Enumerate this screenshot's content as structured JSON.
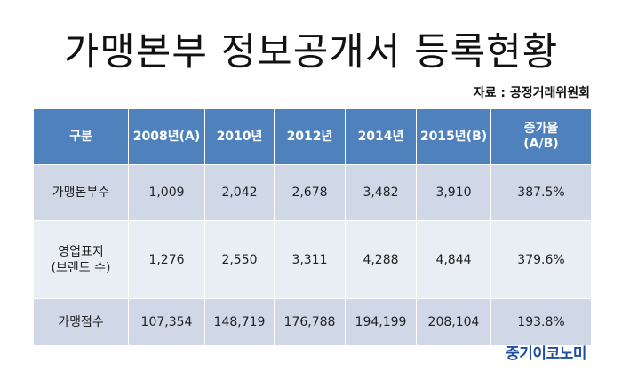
{
  "title": "가맹본부 정보공개서 등록현황",
  "source": "자료 : 공정거래위원회",
  "table": {
    "headers": [
      "구분",
      "2008년(A)",
      "2010년",
      "2012년",
      "2014년",
      "2015년(B)",
      "증가율\n(A/B)"
    ],
    "rows": [
      {
        "label": "가맹본부수",
        "values": [
          "1,009",
          "2,042",
          "2,678",
          "3,482",
          "3,910",
          "387.5%"
        ]
      },
      {
        "label": "영업표지\n(브랜드 수)",
        "values": [
          "1,276",
          "2,550",
          "3,311",
          "4,288",
          "4,844",
          "379.6%"
        ]
      },
      {
        "label": "가맹점수",
        "values": [
          "107,354",
          "148,719",
          "176,788",
          "194,199",
          "208,104",
          "193.8%"
        ]
      }
    ]
  },
  "logo": "중기이코노미",
  "colors": {
    "header_bg": "#4f81bd",
    "row_dark": "#d0d8e8",
    "row_light": "#e9edf4",
    "logo": "#1f4fa3"
  }
}
